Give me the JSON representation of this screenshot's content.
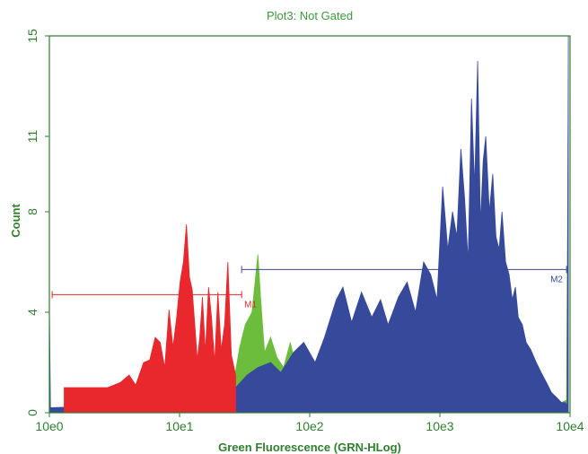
{
  "chart_data": {
    "type": "area",
    "title": "Plot3: Not Gated",
    "xlabel": "Green Fluorescence (GRN-HLog)",
    "ylabel": "Count",
    "x_scale": "log",
    "xlim": [
      1,
      10000
    ],
    "ylim": [
      0,
      15
    ],
    "x_ticks": [
      {
        "value": 1,
        "label": "10e0"
      },
      {
        "value": 10,
        "label": "10e1"
      },
      {
        "value": 100,
        "label": "10e2"
      },
      {
        "value": 1000,
        "label": "10e3"
      },
      {
        "value": 10000,
        "label": "10e4"
      }
    ],
    "y_ticks": [
      {
        "value": 0,
        "label": "0"
      },
      {
        "value": 4,
        "label": "4"
      },
      {
        "value": 8,
        "label": "8"
      },
      {
        "value": 11,
        "label": "11"
      },
      {
        "value": 15,
        "label": "15"
      }
    ],
    "grid": false,
    "colors": {
      "axis": "#2f7f2f",
      "red": "#e8282c",
      "green": "#6cbd3c",
      "blue": "#36499b"
    },
    "series": [
      {
        "color": "#e8282c",
        "x": [
          1.3,
          2.8,
          3.5,
          4.1,
          4.6,
          5.3,
          5.9,
          6.5,
          7.1,
          7.7,
          8.3,
          8.9,
          9.5,
          10.1,
          10.7,
          11.3,
          11.9,
          12.5,
          13.1,
          13.7,
          14.3,
          15.0,
          15.8,
          16.7,
          17.6,
          18.6,
          19.7,
          20.9,
          22.2,
          23.5,
          25.0,
          27.0
        ],
        "y": [
          1.0,
          1.0,
          1.2,
          1.5,
          1.1,
          2.0,
          2.1,
          3.0,
          2.8,
          1.8,
          4.1,
          2.6,
          3.8,
          5.2,
          6.0,
          7.5,
          5.4,
          4.9,
          3.5,
          2.1,
          3.0,
          4.6,
          2.4,
          5.0,
          3.8,
          2.0,
          4.8,
          2.5,
          3.5,
          6.0,
          2.3,
          1.5
        ]
      },
      {
        "color": "#6cbd3c",
        "x": [
          3.0,
          4.0,
          5.0,
          6.0,
          8.0,
          10.0,
          12.0,
          14.0,
          16.0,
          18.0,
          20.0,
          23.0,
          26.0,
          29.0,
          32.0,
          36.0,
          40.0,
          42.0,
          45.0,
          50.0,
          56.0,
          63.0,
          71.0,
          80.0,
          90.0,
          100.0,
          115.0,
          130.0,
          150.0,
          170.0,
          200.0,
          240.0,
          290.0,
          350.0,
          420.0,
          500.0,
          600.0,
          700.0,
          800.0,
          900.0,
          1000.0,
          1200.0,
          1400.0,
          1600.0,
          1900.0,
          2200.0,
          2600.0,
          3000.0,
          3500.0,
          4000.0,
          4700.0,
          5500.0,
          6500.0,
          7500.0,
          8500.0,
          9400.0,
          9700.0
        ],
        "y": [
          0.5,
          0.3,
          0.8,
          0.4,
          0.6,
          1.0,
          0.8,
          1.4,
          1.8,
          1.2,
          2.0,
          1.5,
          1.2,
          2.6,
          3.5,
          4.0,
          6.3,
          4.5,
          2.4,
          3.0,
          2.2,
          1.8,
          2.8,
          1.6,
          2.1,
          1.8,
          1.4,
          2.2,
          1.6,
          1.2,
          1.0,
          1.5,
          0.9,
          1.2,
          2.2,
          1.8,
          1.4,
          2.6,
          3.2,
          1.5,
          2.0,
          1.8,
          2.4,
          1.3,
          2.8,
          1.2,
          1.5,
          2.0,
          2.5,
          1.1,
          1.4,
          0.8,
          0.6,
          0.5,
          0.4,
          0.5,
          12.8
        ]
      },
      {
        "color": "#36499b",
        "x": [
          1.0,
          1.02,
          15.0,
          18.0,
          22.0,
          27.0,
          33.0,
          40.0,
          50.0,
          60.0,
          75.0,
          90.0,
          110.0,
          130.0,
          160.0,
          180.0,
          210.0,
          250.0,
          300.0,
          350.0,
          400.0,
          480.0,
          560.0,
          650.0,
          750.0,
          850.0,
          950.0,
          1050.0,
          1150.0,
          1250.0,
          1350.0,
          1450.0,
          1550.0,
          1650.0,
          1750.0,
          1850.0,
          1950.0,
          2050.0,
          2150.0,
          2250.0,
          2400.0,
          2550.0,
          2700.0,
          2850.0,
          3000.0,
          3200.0,
          3400.0,
          3600.0,
          3800.0,
          4000.0,
          4300.0,
          4600.0,
          5000.0,
          5500.0,
          6000.0,
          6600.0,
          7200.0,
          7900.0,
          8600.0,
          9200.0,
          9500.0,
          9700.0
        ],
        "y": [
          4.3,
          0.2,
          0.4,
          0.8,
          1.2,
          1.0,
          1.5,
          1.8,
          2.0,
          1.6,
          2.4,
          2.8,
          2.0,
          3.0,
          4.5,
          5.0,
          3.6,
          4.8,
          3.8,
          4.5,
          3.5,
          4.6,
          5.2,
          4.0,
          6.0,
          5.5,
          4.5,
          9.0,
          6.5,
          8.0,
          7.0,
          10.5,
          8.5,
          6.0,
          12.5,
          9.0,
          14.0,
          7.5,
          10.0,
          11.0,
          8.0,
          9.5,
          7.0,
          6.5,
          8.0,
          6.0,
          5.5,
          4.5,
          5.0,
          3.8,
          3.5,
          2.8,
          2.5,
          2.0,
          1.6,
          1.2,
          0.8,
          0.6,
          0.4,
          0.4,
          0.3,
          15.0
        ]
      }
    ],
    "markers": [
      {
        "label": "M1",
        "from": 1.05,
        "to": 30.0,
        "level": 4.7,
        "color": "#e8282c"
      },
      {
        "label": "M2",
        "from": 30.0,
        "to": 9400.0,
        "level": 5.7,
        "color": "#36499b"
      }
    ]
  }
}
